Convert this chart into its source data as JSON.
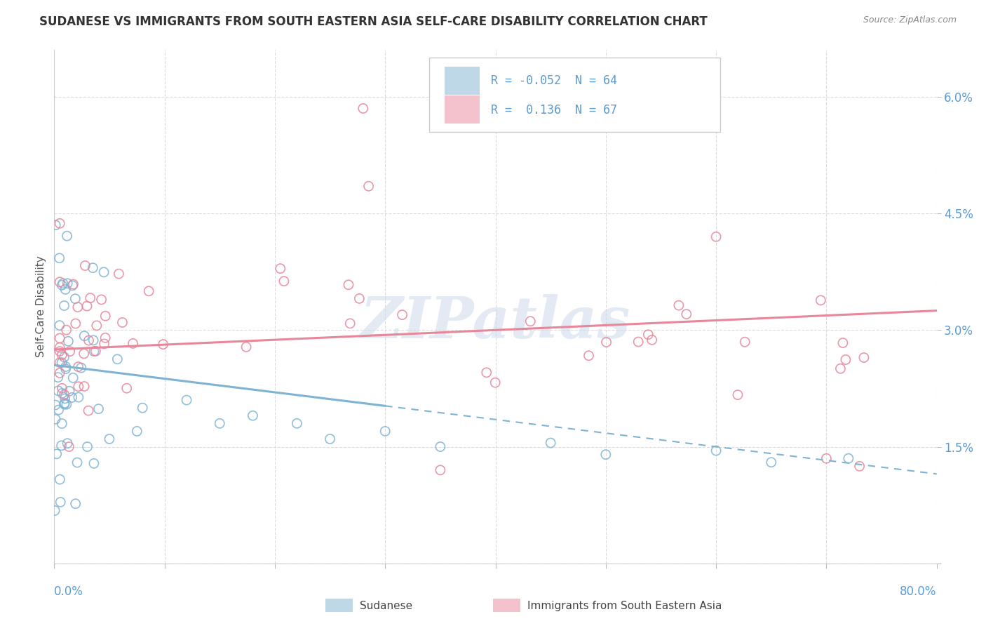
{
  "title": "SUDANESE VS IMMIGRANTS FROM SOUTH EASTERN ASIA SELF-CARE DISABILITY CORRELATION CHART",
  "source": "Source: ZipAtlas.com",
  "ylabel": "Self-Care Disability",
  "xmin": 0.0,
  "xmax": 80.0,
  "ymin": 0.0,
  "ymax": 6.6,
  "yticks": [
    0.0,
    1.5,
    3.0,
    4.5,
    6.0
  ],
  "R_sudanese": -0.052,
  "N_sudanese": 64,
  "R_sea": 0.136,
  "N_sea": 67,
  "color_sudanese": "#7fb3d3",
  "color_sea": "#e8869a",
  "watermark": "ZIPatlas",
  "blue_line_solid_end": 30.0,
  "blue_line_start_y": 2.55,
  "blue_line_end_y": 1.15,
  "pink_line_start_y": 2.75,
  "pink_line_end_y": 3.25,
  "dash_color": "#aaccee"
}
